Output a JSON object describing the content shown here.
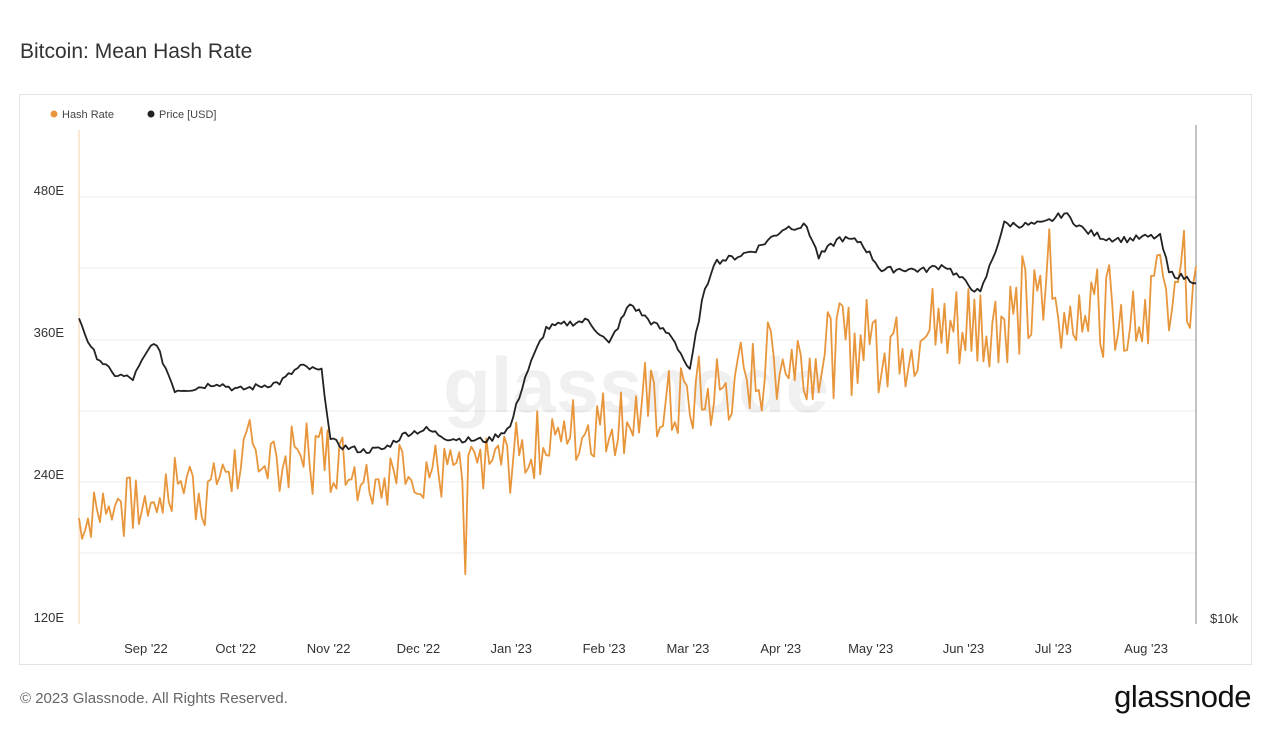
{
  "page": {
    "title": "Bitcoin: Mean Hash Rate",
    "footer": "© 2023 Glassnode. All Rights Reserved.",
    "brand": "glassnode",
    "watermark": "glassnode"
  },
  "chart_data": {
    "type": "line",
    "title": "Bitcoin: Mean Hash Rate",
    "x_ticks": [
      "Sep '22",
      "Oct '22",
      "Nov '22",
      "Dec '22",
      "Jan '23",
      "Feb '23",
      "Mar '23",
      "Apr '23",
      "May '23",
      "Jun '23",
      "Jul '23",
      "Aug '23"
    ],
    "x_range": [
      "2022-08-18",
      "2023-08-26"
    ],
    "y_left": {
      "ticks": [
        "120E",
        "240E",
        "360E",
        "480E"
      ],
      "ylim": [
        120,
        480
      ],
      "unit": "E"
    },
    "y_right": {
      "ticks": [
        "$10k"
      ],
      "scale": "log"
    },
    "grid": true,
    "legend_position": "top-left",
    "series": [
      {
        "name": "Hash Rate",
        "color": "#e8963c",
        "axis": "left",
        "points": [
          [
            "2022-08-18",
            202
          ],
          [
            "2022-08-25",
            210
          ],
          [
            "2022-09-01",
            218
          ],
          [
            "2022-09-08",
            212
          ],
          [
            "2022-09-15",
            225
          ],
          [
            "2022-09-22",
            238
          ],
          [
            "2022-09-29",
            222
          ],
          [
            "2022-10-06",
            245
          ],
          [
            "2022-10-13",
            251
          ],
          [
            "2022-10-20",
            256
          ],
          [
            "2022-10-27",
            252
          ],
          [
            "2022-11-03",
            262
          ],
          [
            "2022-11-10",
            258
          ],
          [
            "2022-11-17",
            248
          ],
          [
            "2022-11-24",
            242
          ],
          [
            "2022-12-01",
            240
          ],
          [
            "2022-12-08",
            248
          ],
          [
            "2022-12-15",
            243
          ],
          [
            "2022-12-22",
            238
          ],
          [
            "2023-01-01",
            245
          ],
          [
            "2023-01-08",
            252
          ],
          [
            "2023-01-15",
            262
          ],
          [
            "2023-01-22",
            272
          ],
          [
            "2023-01-29",
            276
          ],
          [
            "2023-02-05",
            282
          ],
          [
            "2023-02-12",
            285
          ],
          [
            "2023-02-19",
            290
          ],
          [
            "2023-02-26",
            300
          ],
          [
            "2023-03-05",
            296
          ],
          [
            "2023-03-12",
            305
          ],
          [
            "2023-03-19",
            308
          ],
          [
            "2023-03-26",
            320
          ],
          [
            "2023-04-02",
            330
          ],
          [
            "2023-04-09",
            338
          ],
          [
            "2023-04-16",
            342
          ],
          [
            "2023-04-23",
            340
          ],
          [
            "2023-04-30",
            348
          ],
          [
            "2023-05-07",
            352
          ],
          [
            "2023-05-14",
            356
          ],
          [
            "2023-05-21",
            358
          ],
          [
            "2023-05-28",
            360
          ],
          [
            "2023-06-04",
            362
          ],
          [
            "2023-06-11",
            368
          ],
          [
            "2023-06-18",
            372
          ],
          [
            "2023-06-25",
            375
          ],
          [
            "2023-07-02",
            378
          ],
          [
            "2023-07-09",
            382
          ],
          [
            "2023-07-16",
            380
          ],
          [
            "2023-07-23",
            384
          ],
          [
            "2023-07-30",
            386
          ],
          [
            "2023-08-06",
            385
          ],
          [
            "2023-08-13",
            392
          ],
          [
            "2023-08-20",
            395
          ],
          [
            "2023-08-26",
            390
          ]
        ],
        "note_peak": 447,
        "note_trough": 156
      },
      {
        "name": "Price [USD]",
        "color": "#222222",
        "axis": "right",
        "points": [
          [
            "2022-08-18",
            23500
          ],
          [
            "2022-08-22",
            21500
          ],
          [
            "2022-08-29",
            20100
          ],
          [
            "2022-09-05",
            19800
          ],
          [
            "2022-09-12",
            22000
          ],
          [
            "2022-09-19",
            19200
          ],
          [
            "2022-09-26",
            19300
          ],
          [
            "2022-10-03",
            19600
          ],
          [
            "2022-10-10",
            19200
          ],
          [
            "2022-10-17",
            19400
          ],
          [
            "2022-10-24",
            19600
          ],
          [
            "2022-10-31",
            20500
          ],
          [
            "2022-11-07",
            20200
          ],
          [
            "2022-11-10",
            16700
          ],
          [
            "2022-11-14",
            16400
          ],
          [
            "2022-11-21",
            16200
          ],
          [
            "2022-11-28",
            16300
          ],
          [
            "2022-12-05",
            17000
          ],
          [
            "2022-12-12",
            17200
          ],
          [
            "2022-12-19",
            16800
          ],
          [
            "2022-12-26",
            16700
          ],
          [
            "2023-01-02",
            16700
          ],
          [
            "2023-01-09",
            17300
          ],
          [
            "2023-01-14",
            19900
          ],
          [
            "2023-01-21",
            22800
          ],
          [
            "2023-01-28",
            23100
          ],
          [
            "2023-02-04",
            23300
          ],
          [
            "2023-02-11",
            21800
          ],
          [
            "2023-02-18",
            24400
          ],
          [
            "2023-02-25",
            23200
          ],
          [
            "2023-03-04",
            22300
          ],
          [
            "2023-03-10",
            20200
          ],
          [
            "2023-03-14",
            24500
          ],
          [
            "2023-03-18",
            27400
          ],
          [
            "2023-03-25",
            27800
          ],
          [
            "2023-04-01",
            28400
          ],
          [
            "2023-04-11",
            30200
          ],
          [
            "2023-04-18",
            30300
          ],
          [
            "2023-04-22",
            27800
          ],
          [
            "2023-04-29",
            29300
          ],
          [
            "2023-05-06",
            29000
          ],
          [
            "2023-05-13",
            26800
          ],
          [
            "2023-05-20",
            26900
          ],
          [
            "2023-05-27",
            26800
          ],
          [
            "2023-06-03",
            27200
          ],
          [
            "2023-06-10",
            25900
          ],
          [
            "2023-06-15",
            25100
          ],
          [
            "2023-06-20",
            28300
          ],
          [
            "2023-06-23",
            30500
          ],
          [
            "2023-06-30",
            30400
          ],
          [
            "2023-07-06",
            30500
          ],
          [
            "2023-07-13",
            31400
          ],
          [
            "2023-07-20",
            29900
          ],
          [
            "2023-07-27",
            29300
          ],
          [
            "2023-08-03",
            29200
          ],
          [
            "2023-08-10",
            29400
          ],
          [
            "2023-08-14",
            29400
          ],
          [
            "2023-08-17",
            26600
          ],
          [
            "2023-08-26",
            26000
          ]
        ]
      }
    ]
  }
}
